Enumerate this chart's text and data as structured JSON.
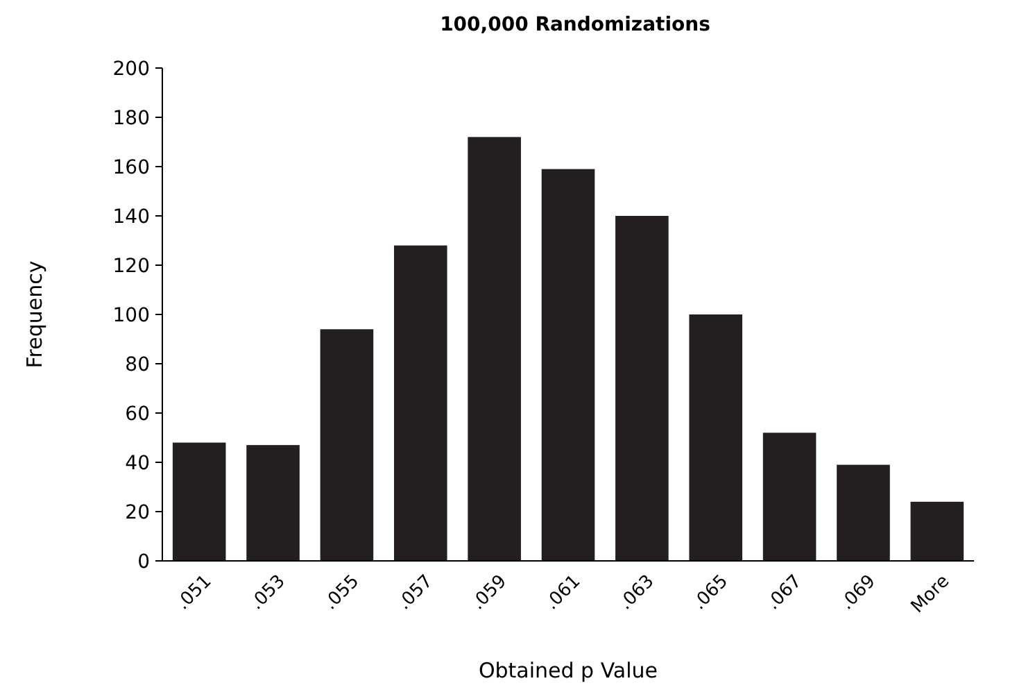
{
  "chart_data": {
    "type": "bar",
    "title": "100,000 Randomizations",
    "xlabel": "Obtained p Value",
    "ylabel": "Frequency",
    "categories": [
      ".051",
      ".053",
      ".055",
      ".057",
      ".059",
      ".061",
      ".063",
      ".065",
      ".067",
      ".069",
      "More"
    ],
    "values": [
      48,
      47,
      94,
      128,
      172,
      159,
      140,
      100,
      52,
      39,
      24
    ],
    "color": "#231f20",
    "ylim": [
      0,
      200
    ],
    "yticks": [
      0,
      20,
      40,
      60,
      80,
      100,
      120,
      140,
      160,
      180,
      200
    ],
    "grid": false
  }
}
